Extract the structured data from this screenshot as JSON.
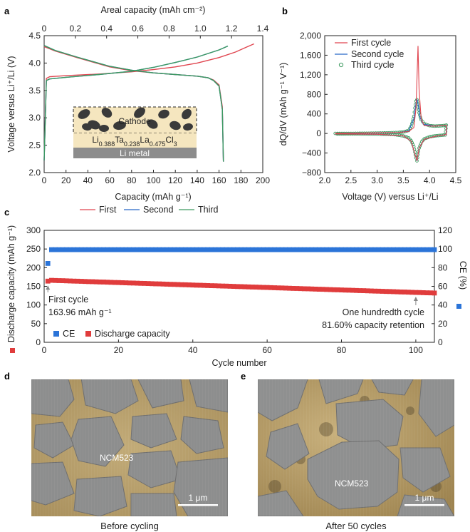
{
  "colors": {
    "first": "#e0454f",
    "second": "#2868c8",
    "third": "#3d9a60",
    "ce_marker": "#2b74d8",
    "discharge_marker": "#e03c3c",
    "cathode_fill": "#f5e6bf",
    "cathode_particle": "#3a3a3a",
    "li_metal": "#8c8c8c",
    "sem_matrix": "#b8a071",
    "sem_particle": "#8a8a8a"
  },
  "panels": {
    "a": "a",
    "b": "b",
    "c": "c",
    "d": "d",
    "e": "e"
  },
  "chart_data": [
    {
      "id": "a",
      "type": "line",
      "xlabel": "Capacity (mAh g⁻¹)",
      "x2label": "Areal capacity (mAh cm⁻²)",
      "ylabel": "Voltage versus Li⁺/Li (V)",
      "xlim": [
        0,
        200
      ],
      "ylim": [
        2.0,
        4.5
      ],
      "x2lim": [
        0,
        1.4
      ],
      "xticks": [
        "0",
        "20",
        "40",
        "60",
        "80",
        "100",
        "120",
        "140",
        "160",
        "180",
        "200"
      ],
      "x2ticks": [
        "0",
        "0.2",
        "0.4",
        "0.6",
        "0.8",
        "1.0",
        "1.2",
        "1.4"
      ],
      "yticks": [
        "2.0",
        "2.5",
        "3.0",
        "3.5",
        "4.0",
        "4.5"
      ],
      "legend": [
        "First",
        "Second",
        "Third"
      ],
      "inset": {
        "cathode_label": "Cathode",
        "electrolyte_label": "Li0.388Ta0.238La0.475Cl3",
        "electrolyte_parts": [
          "Li",
          "0.388",
          "Ta",
          "0.238",
          "La",
          "0.475",
          "Cl",
          "3"
        ],
        "anode_label": "Li metal"
      },
      "series": [
        {
          "name": "First charge",
          "x": [
            0,
            2,
            5,
            20,
            50,
            80,
            100,
            120,
            140,
            160,
            175,
            185,
            192
          ],
          "y": [
            2.22,
            3.72,
            3.75,
            3.77,
            3.8,
            3.84,
            3.88,
            3.93,
            4.0,
            4.1,
            4.2,
            4.29,
            4.35
          ]
        },
        {
          "name": "First discharge",
          "x": [
            0,
            10,
            30,
            60,
            80,
            100,
            120,
            140,
            150,
            155,
            160,
            163,
            164
          ],
          "y": [
            4.3,
            4.22,
            4.1,
            3.93,
            3.86,
            3.82,
            3.79,
            3.76,
            3.73,
            3.69,
            3.6,
            3.2,
            2.2
          ]
        },
        {
          "name": "Second charge",
          "x": [
            0,
            2,
            5,
            20,
            50,
            80,
            100,
            120,
            140,
            160,
            168
          ],
          "y": [
            2.22,
            3.68,
            3.71,
            3.74,
            3.79,
            3.85,
            3.92,
            4.01,
            4.11,
            4.24,
            4.31
          ]
        },
        {
          "name": "Second discharge",
          "x": [
            0,
            10,
            30,
            60,
            80,
            100,
            120,
            140,
            150,
            155,
            160,
            163,
            164
          ],
          "y": [
            4.32,
            4.23,
            4.11,
            3.94,
            3.87,
            3.82,
            3.79,
            3.76,
            3.73,
            3.68,
            3.58,
            3.15,
            2.2
          ]
        },
        {
          "name": "Third charge",
          "x": [
            0,
            2,
            5,
            20,
            50,
            80,
            100,
            120,
            140,
            160,
            168
          ],
          "y": [
            2.22,
            3.68,
            3.71,
            3.74,
            3.79,
            3.85,
            3.92,
            4.01,
            4.11,
            4.24,
            4.31
          ]
        },
        {
          "name": "Third discharge",
          "x": [
            0,
            10,
            30,
            60,
            80,
            100,
            120,
            140,
            150,
            155,
            160,
            163,
            164
          ],
          "y": [
            4.32,
            4.23,
            4.11,
            3.94,
            3.87,
            3.82,
            3.79,
            3.76,
            3.73,
            3.68,
            3.58,
            3.15,
            2.2
          ]
        }
      ]
    },
    {
      "id": "b",
      "type": "line",
      "xlabel": "Voltage (V) versus Li⁺/Li",
      "ylabel": "dQ/dV (mAh g⁻¹ V⁻¹)",
      "xlim": [
        2.0,
        4.5
      ],
      "ylim": [
        -800,
        2000
      ],
      "xticks": [
        "2.0",
        "2.5",
        "3.0",
        "3.5",
        "4.0",
        "4.5"
      ],
      "yticks": [
        "−800",
        "−400",
        "0",
        "400",
        "800",
        "1,200",
        "1,600",
        "2,000"
      ],
      "legend": [
        "First cycle",
        "Second cycle",
        "Third cycle"
      ],
      "series": [
        {
          "name": "First cycle",
          "x": [
            2.2,
            3.4,
            3.6,
            3.7,
            3.74,
            3.76,
            3.78,
            3.8,
            3.84,
            3.9,
            4.1,
            4.32,
            4.32,
            4.1,
            3.9,
            3.8,
            3.76,
            3.72,
            3.65,
            3.5,
            3.0,
            2.2
          ],
          "y": [
            0,
            20,
            40,
            120,
            500,
            1100,
            1790,
            900,
            300,
            160,
            150,
            170,
            -20,
            -60,
            -120,
            -300,
            -560,
            -420,
            -160,
            -50,
            -15,
            -10
          ]
        },
        {
          "name": "Second cycle",
          "x": [
            2.2,
            3.4,
            3.6,
            3.7,
            3.74,
            3.76,
            3.78,
            3.82,
            3.88,
            4.1,
            4.32,
            4.32,
            4.1,
            3.9,
            3.8,
            3.76,
            3.72,
            3.65,
            3.5,
            3.0,
            2.2
          ],
          "y": [
            0,
            15,
            50,
            300,
            620,
            700,
            600,
            320,
            190,
            150,
            170,
            -20,
            -60,
            -120,
            -300,
            -565,
            -420,
            -160,
            -50,
            -15,
            -10
          ]
        },
        {
          "name": "Third cycle",
          "x": [
            2.2,
            2.5,
            2.8,
            3.1,
            3.4,
            3.5,
            3.6,
            3.65,
            3.7,
            3.72,
            3.74,
            3.76,
            3.78,
            3.8,
            3.84,
            3.9,
            4.0,
            4.1,
            4.2,
            4.3,
            4.32,
            4.3,
            4.2,
            4.1,
            4.0,
            3.9,
            3.85,
            3.8,
            3.78,
            3.76,
            3.74,
            3.72,
            3.7,
            3.65,
            3.6,
            3.5,
            3.3,
            3.0,
            2.7,
            2.4,
            2.2
          ],
          "y": [
            0,
            0,
            5,
            10,
            20,
            30,
            60,
            150,
            350,
            520,
            660,
            690,
            600,
            420,
            280,
            200,
            160,
            150,
            155,
            165,
            170,
            -30,
            -40,
            -50,
            -70,
            -110,
            -170,
            -300,
            -430,
            -560,
            -500,
            -380,
            -270,
            -150,
            -90,
            -50,
            -20,
            -15,
            -12,
            -10,
            -10
          ]
        }
      ]
    },
    {
      "id": "c",
      "type": "scatter",
      "xlabel": "Cycle number",
      "ylabel": "Discharge capacity (mAh g⁻¹)",
      "y2label": "CE (%)",
      "xlim": [
        0,
        105
      ],
      "ylim": [
        0,
        300
      ],
      "y2lim": [
        0,
        120
      ],
      "xticks": [
        "0",
        "20",
        "40",
        "60",
        "80",
        "100"
      ],
      "yticks": [
        "0",
        "50",
        "100",
        "150",
        "200",
        "250",
        "300"
      ],
      "y2ticks": [
        "0",
        "20",
        "40",
        "60",
        "80",
        "100",
        "120"
      ],
      "legend": [
        "CE",
        "Discharge capacity"
      ],
      "annotations": {
        "first_cycle_line1": "First cycle",
        "first_cycle_line2": "163.96 mAh g⁻¹",
        "hundredth_line1": "One hundredth cycle",
        "hundredth_line2": "81.60% capacity retention"
      },
      "discharge_capacity": {
        "first": 163.96,
        "second": 166,
        "cycle_100": 133.8,
        "last_cycle": 105,
        "last": 132
      },
      "ce": {
        "first": 84.5,
        "steady": 99.3
      }
    }
  ],
  "images": {
    "d": {
      "particle_label": "NCM523",
      "scale_label": "1 μm",
      "caption": "Before cycling"
    },
    "e": {
      "particle_label": "NCM523",
      "scale_label": "1 μm",
      "caption": "After 50 cycles"
    }
  }
}
